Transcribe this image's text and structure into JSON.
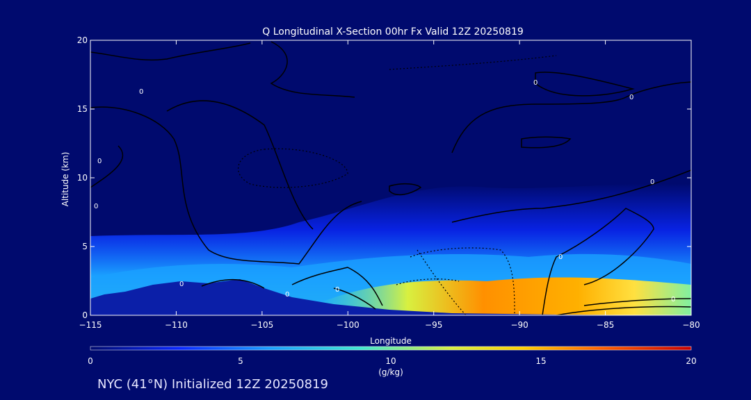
{
  "chart_data": {
    "type": "heatmap",
    "title": "Q Longitudinal X-Section 00hr  Fx Valid 12Z 20250819",
    "xlabel": "Longitude",
    "ylabel": "Altitude (km)",
    "xlim": [
      -115,
      -80
    ],
    "ylim": [
      0,
      20
    ],
    "x_ticks": [
      "-115",
      "-110",
      "-105",
      "-100",
      "-95",
      "-90",
      "-85",
      "-80"
    ],
    "y_ticks": [
      "0",
      "5",
      "10",
      "15",
      "20"
    ],
    "colorbar": {
      "label": "(g/kg)",
      "range": [
        0,
        20
      ],
      "ticks": [
        "0",
        "5",
        "10",
        "15",
        "20"
      ]
    },
    "moisture_profile": {
      "longitude": [
        -115,
        -112,
        -110,
        -107,
        -105,
        -102,
        -100,
        -97,
        -95,
        -93,
        -90,
        -88,
        -86,
        -84,
        -82,
        -80
      ],
      "surface_q": [
        4,
        5,
        5,
        5,
        6,
        9,
        11,
        13,
        15,
        16,
        16,
        15,
        14,
        13,
        12,
        11
      ],
      "moist_layer_top_km": [
        5.5,
        5.5,
        5.5,
        5.3,
        5,
        6,
        7,
        7,
        7.5,
        7.5,
        7.5,
        8,
        9,
        9,
        9,
        9
      ]
    },
    "terrain_km": {
      "longitude": [
        -115,
        -114,
        -112,
        -110,
        -108,
        -106,
        -105,
        -103,
        -100,
        -97,
        -95,
        -90,
        -85,
        -80
      ],
      "height": [
        1.2,
        1.1,
        1.6,
        2.2,
        2.0,
        2.4,
        1.8,
        1.4,
        0.9,
        0.6,
        0.4,
        0.2,
        0.1,
        0.1
      ]
    },
    "contour_labels": [
      "0"
    ]
  },
  "footer": "NYC (41°N) Initialized 12Z 20250819"
}
